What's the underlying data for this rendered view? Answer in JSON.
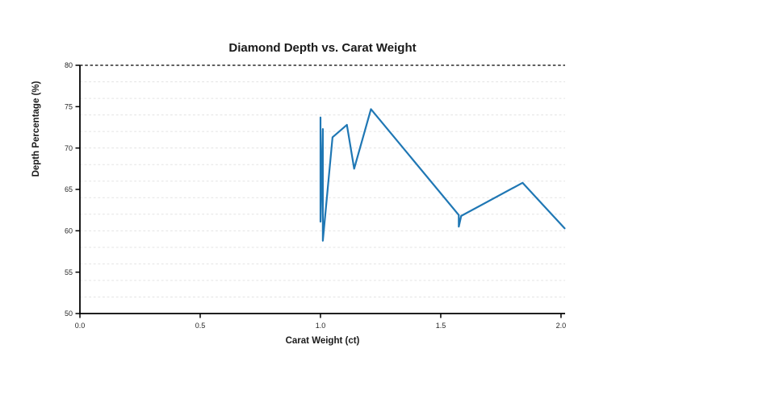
{
  "chart_data": {
    "type": "line",
    "title": "Diamond Depth vs. Carat Weight",
    "xlabel": "Carat Weight (ct)",
    "ylabel": "Depth Percentage (%)",
    "xlim": [
      0.0,
      2.017
    ],
    "ylim": [
      50,
      80
    ],
    "x_tick_values": [
      0.0,
      0.5,
      1.0,
      1.5,
      2.0
    ],
    "x_tick_labels": [
      "0.0",
      "0.5",
      "1.0",
      "1.5",
      "2.0"
    ],
    "y_tick_values": [
      50,
      55,
      60,
      65,
      70,
      75,
      80
    ],
    "y_tick_labels": [
      "50",
      "55",
      "60",
      "65",
      "70",
      "75",
      "80"
    ],
    "grid": "horizontal only, light dashed lines every 2 units",
    "grid_values": [
      52,
      54,
      56,
      58,
      60,
      62,
      64,
      66,
      68,
      70,
      72,
      74,
      76,
      78
    ],
    "reference_line": {
      "y": 80,
      "style": "dashed",
      "color": "#000000"
    },
    "legend": "none",
    "series": [
      {
        "name": "depth-vs-carat",
        "color": "#1f77b4",
        "points": [
          [
            1.0,
            73.7
          ],
          [
            1.0,
            61.1
          ],
          [
            1.01,
            72.3
          ],
          [
            1.01,
            58.8
          ],
          [
            1.05,
            71.3
          ],
          [
            1.11,
            72.8
          ],
          [
            1.14,
            67.5
          ],
          [
            1.21,
            74.7
          ],
          [
            1.575,
            61.9
          ],
          [
            1.575,
            60.5
          ],
          [
            1.585,
            61.8
          ],
          [
            1.84,
            65.8
          ],
          [
            2.015,
            60.3
          ]
        ]
      }
    ]
  },
  "colors": {
    "line": "#1f77b4",
    "grid": "#e3e3e3",
    "axis": "#000000",
    "reference": "#000000",
    "title_text": "#1a1a1a",
    "tick_text": "#262626",
    "background": "#ffffff"
  }
}
